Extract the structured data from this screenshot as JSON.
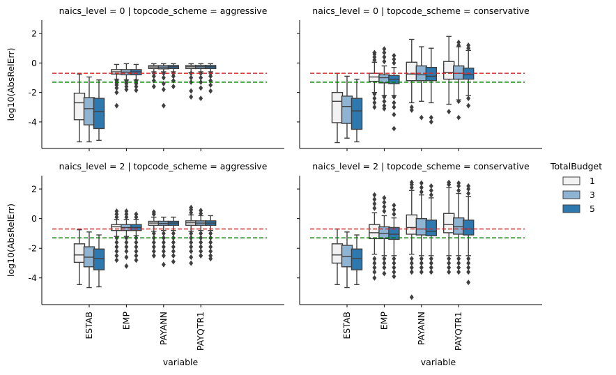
{
  "chart_data": {
    "type": "boxplot",
    "layout": "2x2 facet grid",
    "ylabel": "log10(AbsRelErr)",
    "xlabel": "variable",
    "categories": [
      "ESTAB",
      "EMP",
      "PAYANN",
      "PAYQTR1"
    ],
    "yticks": [
      2,
      0,
      -2,
      -4
    ],
    "ylim": [
      -5.8,
      2.9
    ],
    "reference_lines": [
      {
        "value": -0.7,
        "color": "#d62728",
        "style": "dashed"
      },
      {
        "value": -1.3,
        "color": "#008000",
        "style": "dashed"
      }
    ],
    "legend": {
      "title": "TotalBudget",
      "position": "right",
      "entries": [
        {
          "label": "1",
          "color": "#f2f2f2"
        },
        {
          "label": "3",
          "color": "#8fb3d3"
        },
        {
          "label": "5",
          "color": "#2e78b0"
        }
      ]
    },
    "panels": [
      {
        "title": "naics_level = 0 | topcode_scheme = aggressive",
        "boxes": [
          [
            [
              -5.35,
              -3.85,
              -2.7,
              -2.05,
              -0.75
            ],
            [
              -5.35,
              -4.2,
              -3.1,
              -2.35,
              -0.95
            ],
            [
              -5.25,
              -4.45,
              -3.3,
              -2.4,
              -1.15
            ]
          ],
          [
            [
              -1.1,
              -0.75,
              -0.6,
              -0.45,
              -0.1
            ],
            [
              -1.15,
              -0.8,
              -0.62,
              -0.45,
              -0.05
            ],
            [
              -1.15,
              -0.8,
              -0.6,
              -0.45,
              -0.1
            ]
          ],
          [
            [
              -0.6,
              -0.38,
              -0.27,
              -0.18,
              -0.05
            ],
            [
              -0.6,
              -0.4,
              -0.28,
              -0.18,
              -0.05
            ],
            [
              -0.6,
              -0.38,
              -0.26,
              -0.17,
              -0.05
            ]
          ],
          [
            [
              -0.65,
              -0.38,
              -0.26,
              -0.17,
              -0.05
            ],
            [
              -0.6,
              -0.38,
              -0.26,
              -0.16,
              -0.05
            ],
            [
              -0.6,
              -0.38,
              -0.26,
              -0.17,
              -0.05
            ]
          ]
        ],
        "outliers": [
          [
            [],
            [],
            []
          ],
          [
            [
              -1.2,
              -1.35,
              -1.5,
              -1.7,
              -2.0,
              -2.9
            ],
            [
              -1.2,
              -1.4,
              -1.6,
              -1.8
            ],
            [
              -1.2,
              -1.4,
              -1.6,
              -1.85
            ]
          ],
          [
            [
              -0.7,
              -0.9,
              -1.2,
              -1.6
            ],
            [
              -0.7,
              -1.0,
              -1.4,
              -1.8,
              -2.9
            ],
            [
              -0.7,
              -0.9,
              -1.2,
              -1.6
            ]
          ],
          [
            [
              -0.7,
              -1.0,
              -1.3,
              -1.9,
              -2.3
            ],
            [
              -0.7,
              -1.0,
              -1.3,
              -1.7,
              -2.4
            ],
            [
              -0.7,
              -0.9,
              -1.2,
              -1.5,
              -1.9
            ]
          ]
        ]
      },
      {
        "title": "naics_level = 0 | topcode_scheme = conservative",
        "boxes": [
          [
            [
              -5.4,
              -4.05,
              -2.6,
              -2.0,
              -0.7
            ],
            [
              -5.1,
              -4.1,
              -2.95,
              -2.25,
              -0.9
            ],
            [
              -5.35,
              -4.5,
              -3.25,
              -2.4,
              -1.1
            ]
          ],
          [
            [
              -2.0,
              -1.25,
              -0.95,
              -0.7,
              0.05
            ],
            [
              -2.2,
              -1.35,
              -1.0,
              -0.8,
              -0.2
            ],
            [
              -2.2,
              -1.4,
              -1.1,
              -0.85,
              -0.3
            ]
          ],
          [
            [
              -2.7,
              -1.2,
              -0.75,
              0.05,
              1.6
            ],
            [
              -2.6,
              -1.2,
              -0.8,
              -0.2,
              1.1
            ],
            [
              -2.7,
              -1.2,
              -0.9,
              -0.3,
              1.0
            ]
          ],
          [
            [
              -2.8,
              -1.1,
              -0.65,
              0.1,
              1.8
            ],
            [
              -2.5,
              -1.1,
              -0.7,
              -0.2,
              1.1
            ],
            [
              -2.2,
              -1.1,
              -0.8,
              -0.35,
              0.85
            ]
          ]
        ],
        "outliers": [
          [
            [],
            [],
            []
          ],
          [
            [
              0.2,
              0.4,
              0.6,
              0.7,
              -2.1,
              -2.4,
              -2.7,
              -3.0
            ],
            [
              0.1,
              0.4,
              0.7,
              0.95,
              -2.3,
              -2.6,
              -2.9,
              -3.1
            ],
            [
              0.0,
              0.25,
              0.5,
              -2.3,
              -2.7,
              -3.0,
              -3.5,
              -4.45
            ]
          ],
          [
            [
              -3.0,
              -3.2
            ],
            [
              -3.7
            ],
            [
              -3.7,
              -4.0
            ]
          ],
          [
            [
              -3.3
            ],
            [
              1.2,
              1.4,
              -2.6,
              -3.7
            ],
            [
              1.0,
              1.2,
              -2.4,
              -2.9
            ]
          ]
        ]
      },
      {
        "title": "naics_level = 2 | topcode_scheme = aggressive",
        "boxes": [
          [
            [
              -4.45,
              -2.95,
              -2.45,
              -1.7,
              -0.75
            ],
            [
              -4.65,
              -3.25,
              -2.6,
              -1.9,
              -0.9
            ],
            [
              -4.6,
              -3.45,
              -2.7,
              -2.05,
              -1.1
            ]
          ],
          [
            [
              -1.2,
              -0.8,
              -0.55,
              -0.4,
              -0.05
            ],
            [
              -1.2,
              -0.8,
              -0.6,
              -0.4,
              -0.05
            ],
            [
              -1.15,
              -0.8,
              -0.6,
              -0.4,
              -0.05
            ]
          ],
          [
            [
              -0.85,
              -0.45,
              -0.3,
              -0.18,
              0.1
            ],
            [
              -0.8,
              -0.45,
              -0.32,
              -0.18,
              0.1
            ],
            [
              -0.8,
              -0.45,
              -0.3,
              -0.18,
              0.1
            ]
          ],
          [
            [
              -0.85,
              -0.45,
              -0.28,
              -0.15,
              0.25
            ],
            [
              -0.8,
              -0.45,
              -0.3,
              -0.15,
              0.2
            ],
            [
              -0.8,
              -0.45,
              -0.3,
              -0.15,
              0.2
            ]
          ]
        ],
        "outliers": [
          [
            [],
            [],
            []
          ],
          [
            [
              0.1,
              0.3,
              0.5,
              -1.3,
              -1.6,
              -1.9,
              -2.2,
              -2.5,
              -2.8
            ],
            [
              0.1,
              0.3,
              0.5,
              -1.3,
              -1.6,
              -1.9,
              -2.2,
              -2.6,
              -3.2
            ],
            [
              0.1,
              0.3,
              -1.3,
              -1.6,
              -1.9,
              -2.2,
              -2.5,
              -2.8
            ]
          ],
          [
            [
              0.3,
              0.45,
              -1.0,
              -1.3,
              -1.6,
              -1.9,
              -2.2,
              -2.5
            ],
            [
              -1.0,
              -1.3,
              -1.6,
              -1.9,
              -2.2,
              -2.5,
              -3.1
            ],
            [
              -1.0,
              -1.3,
              -1.6,
              -1.9,
              -2.2,
              -2.5,
              -2.9
            ]
          ],
          [
            [
              0.4,
              0.6,
              0.75,
              -1.0,
              -1.3,
              -1.6,
              -1.9,
              -2.2,
              -2.6,
              -3.0
            ],
            [
              0.35,
              0.55,
              -1.0,
              -1.3,
              -1.6,
              -1.9,
              -2.2,
              -2.5
            ],
            [
              -1.0,
              -1.3,
              -1.6,
              -1.9,
              -2.2,
              -2.5,
              -2.7
            ]
          ]
        ]
      },
      {
        "title": "naics_level = 2 | topcode_scheme = conservative",
        "boxes": [
          [
            [
              -4.45,
              -3.0,
              -2.45,
              -1.7,
              -0.7
            ],
            [
              -4.65,
              -3.25,
              -2.55,
              -1.8,
              -0.9
            ],
            [
              -4.45,
              -3.45,
              -2.7,
              -2.05,
              -1.1
            ]
          ],
          [
            [
              -2.4,
              -1.35,
              -0.95,
              -0.4,
              0.4
            ],
            [
              -2.5,
              -1.35,
              -1.0,
              -0.55,
              0.2
            ],
            [
              -2.5,
              -1.4,
              -1.05,
              -0.6,
              0.05
            ]
          ],
          [
            [
              -2.4,
              -1.05,
              -0.6,
              0.25,
              1.9
            ],
            [
              -2.5,
              -1.1,
              -0.7,
              0.0,
              1.6
            ],
            [
              -2.5,
              -1.15,
              -0.85,
              -0.1,
              1.4
            ]
          ],
          [
            [
              -2.5,
              -0.95,
              -0.4,
              0.35,
              2.1
            ],
            [
              -2.5,
              -1.05,
              -0.55,
              0.05,
              1.7
            ],
            [
              -2.5,
              -1.1,
              -0.7,
              -0.1,
              1.5
            ]
          ]
        ],
        "outliers": [
          [
            [],
            [],
            []
          ],
          [
            [
              0.7,
              1.0,
              1.3,
              1.6,
              -2.7,
              -3.0,
              -3.3,
              -3.6,
              -4.0
            ],
            [
              0.5,
              0.8,
              1.1,
              1.4,
              -2.7,
              -3.0,
              -3.3,
              -3.7
            ],
            [
              0.3,
              0.6,
              0.9,
              -2.7,
              -3.0,
              -3.3,
              -3.6,
              -3.9
            ]
          ],
          [
            [
              2.1,
              2.3,
              2.45,
              -2.7,
              -3.0,
              -3.3,
              -3.6,
              -5.3
            ],
            [
              1.8,
              2.1,
              2.4,
              -2.7,
              -3.0,
              -3.3,
              -3.6
            ],
            [
              1.6,
              1.9,
              2.2,
              -2.7,
              -3.0,
              -3.3,
              -3.6
            ]
          ],
          [
            [
              2.3,
              2.45,
              -2.7,
              -3.0,
              -3.3,
              -3.6
            ],
            [
              1.9,
              2.2,
              2.4,
              -2.7,
              -3.0,
              -3.3,
              -3.6
            ],
            [
              1.7,
              2.0,
              2.2,
              -2.7,
              -3.0,
              -3.3,
              -3.6,
              -4.3
            ]
          ]
        ]
      }
    ]
  }
}
